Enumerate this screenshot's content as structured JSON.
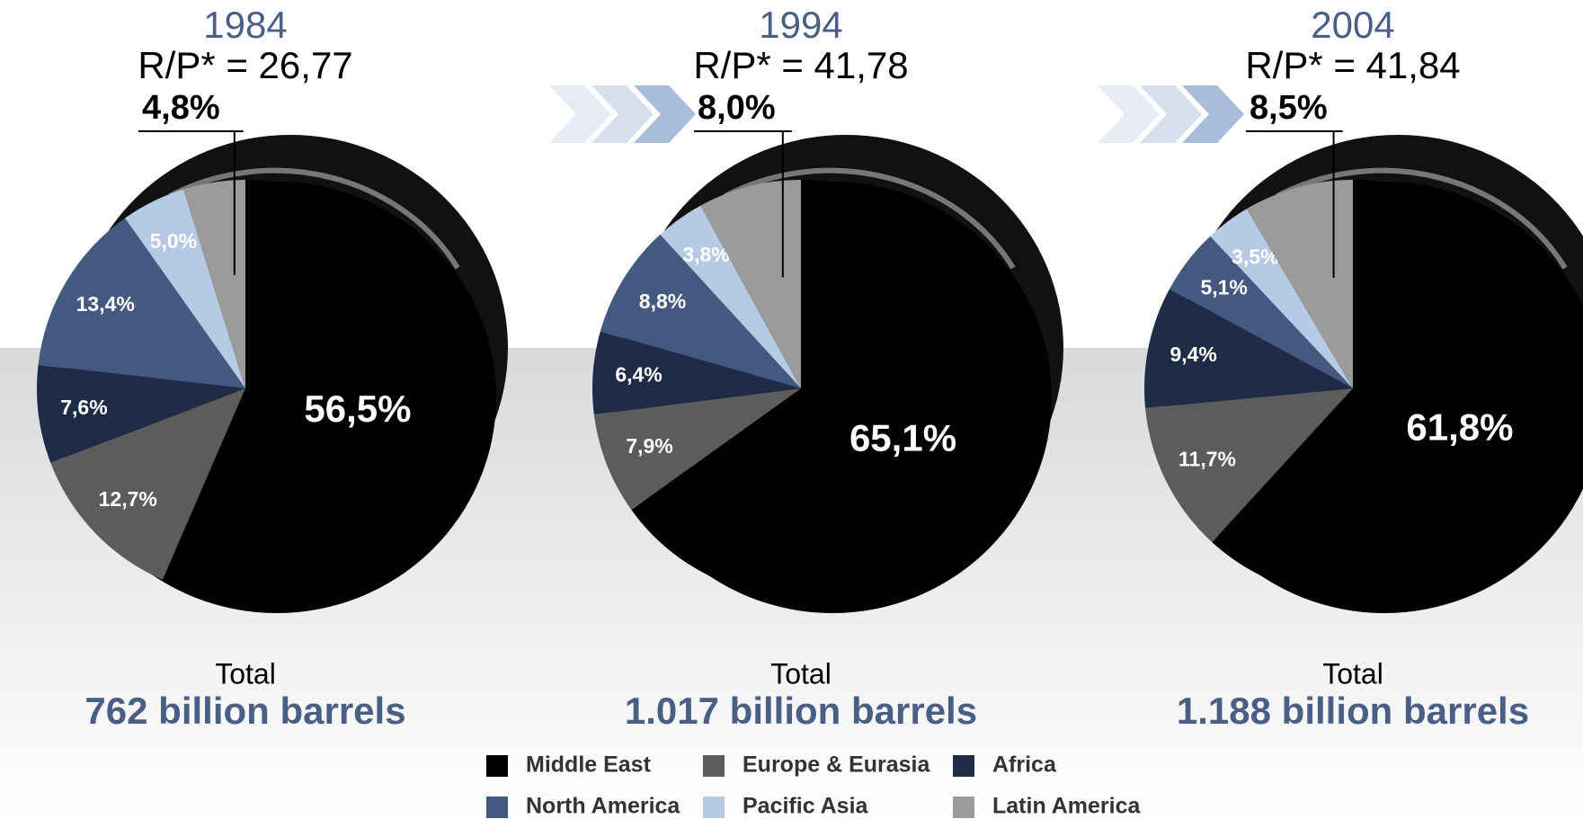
{
  "chart_data": [
    {
      "type": "pie",
      "title": "1984",
      "subtitle": "R/P* = 26,77",
      "total_label": "Total",
      "total": "762 billion barrels",
      "categories": [
        "Middle East",
        "Europe & Eurasia",
        "Africa",
        "North America",
        "Pacific Asia",
        "Latin America"
      ],
      "values": [
        56.5,
        12.7,
        7.6,
        13.4,
        5.0,
        4.8
      ],
      "value_labels": [
        "56,5%",
        "12,7%",
        "7,6%",
        "13,4%",
        "5,0%",
        "4,8%"
      ],
      "colors": [
        "#000000",
        "#5c5c5c",
        "#1f2c48",
        "#44597f",
        "#b6c9e5",
        "#9b9b9b"
      ]
    },
    {
      "type": "pie",
      "title": "1994",
      "subtitle": "R/P* = 41,78",
      "total_label": "Total",
      "total": "1.017 billion barrels",
      "categories": [
        "Middle East",
        "Europe & Eurasia",
        "Africa",
        "North America",
        "Pacific Asia",
        "Latin America"
      ],
      "values": [
        65.1,
        7.9,
        6.4,
        8.8,
        3.8,
        8.0
      ],
      "value_labels": [
        "65,1%",
        "7,9%",
        "6,4%",
        "8,8%",
        "3,8%",
        "8,0%"
      ],
      "colors": [
        "#000000",
        "#5c5c5c",
        "#1f2c48",
        "#44597f",
        "#b6c9e5",
        "#9b9b9b"
      ]
    },
    {
      "type": "pie",
      "title": "2004",
      "subtitle": "R/P* = 41,84",
      "total_label": "Total",
      "total": "1.188 billion barrels",
      "categories": [
        "Middle East",
        "Europe & Eurasia",
        "Africa",
        "North America",
        "Pacific Asia",
        "Latin America"
      ],
      "values": [
        61.8,
        11.7,
        9.4,
        5.1,
        3.5,
        8.5
      ],
      "value_labels": [
        "61,8%",
        "11,7%",
        "9,4%",
        "5,1%",
        "3,5%",
        "8,5%"
      ],
      "colors": [
        "#000000",
        "#5c5c5c",
        "#1f2c48",
        "#44597f",
        "#b6c9e5",
        "#9b9b9b"
      ]
    }
  ]
}
